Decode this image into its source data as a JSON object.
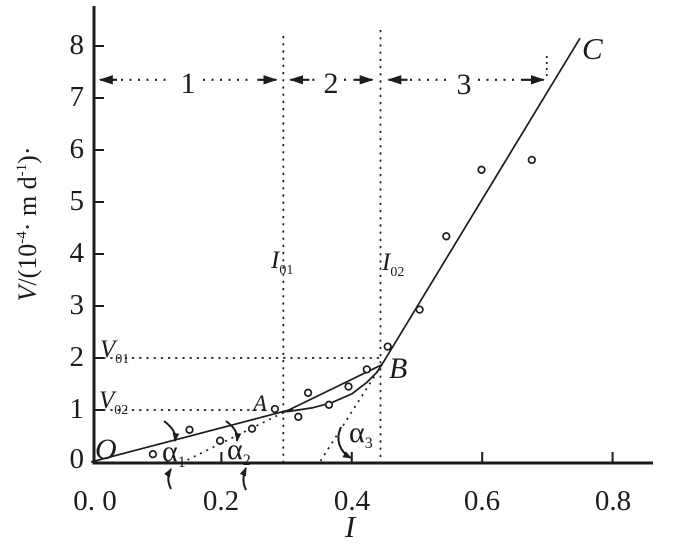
{
  "figure": {
    "background": "#ffffff",
    "ink_color": "#1c1c1c"
  },
  "chart_data": {
    "type": "scatter",
    "title": "",
    "xlabel": "I",
    "ylabel": "V/(10-4· m d-1)·",
    "ylabel_parts": {
      "v": "V",
      "open": "/(10",
      "sup1": "-4",
      "mid": "· m d",
      "sup2": "-1",
      "close": ")·"
    },
    "xlim": [
      0,
      0.88
    ],
    "ylim": [
      0,
      8.5
    ],
    "grid": false,
    "legend": null,
    "x_ticks": [
      {
        "value": 0,
        "label": "0. 0"
      },
      {
        "value": 0.2,
        "label": "0.2"
      },
      {
        "value": 0.4,
        "label": "0.4"
      },
      {
        "value": 0.6,
        "label": "0.6"
      },
      {
        "value": 0.8,
        "label": "0.8"
      }
    ],
    "y_ticks": [
      {
        "value": 0,
        "label": "0"
      },
      {
        "value": 1,
        "label": "1"
      },
      {
        "value": 2,
        "label": "2"
      },
      {
        "value": 3,
        "label": "3"
      },
      {
        "value": 4,
        "label": "4"
      },
      {
        "value": 5,
        "label": "5"
      },
      {
        "value": 6,
        "label": "6"
      },
      {
        "value": 7,
        "label": "7"
      },
      {
        "value": 8,
        "label": "8"
      }
    ],
    "points": [
      [
        0.095,
        0.15
      ],
      [
        0.151,
        0.62
      ],
      [
        0.198,
        0.41
      ],
      [
        0.247,
        0.64
      ],
      [
        0.282,
        1.02
      ],
      [
        0.318,
        0.87
      ],
      [
        0.333,
        1.33
      ],
      [
        0.365,
        1.1
      ],
      [
        0.395,
        1.45
      ],
      [
        0.423,
        1.78
      ],
      [
        0.455,
        2.22
      ],
      [
        0.504,
        2.93
      ],
      [
        0.545,
        4.34
      ],
      [
        0.599,
        5.62
      ],
      [
        0.676,
        5.81
      ]
    ],
    "fitted_lines": [
      {
        "name": "stage1-line",
        "style": "solid",
        "from": [
          0.0,
          0.0
        ],
        "to": [
          0.31,
          1.02
        ]
      },
      {
        "name": "stage2-line-dotted",
        "style": "dotted",
        "from": [
          0.148,
          0.04
        ],
        "to": [
          0.295,
          0.95
        ]
      },
      {
        "name": "stage2-line",
        "style": "solid",
        "from": [
          0.295,
          0.95
        ],
        "to": [
          0.446,
          1.87
        ]
      },
      {
        "name": "stage3-line-dotted",
        "style": "dotted",
        "from": [
          0.352,
          0.02
        ],
        "to": [
          0.446,
          1.87
        ]
      },
      {
        "name": "stage3-line",
        "style": "solid",
        "from": [
          0.446,
          1.87
        ],
        "to": [
          0.75,
          8.15
        ]
      }
    ],
    "curve": [
      [
        0.301,
        0.97
      ],
      [
        0.339,
        1.04
      ],
      [
        0.369,
        1.14
      ],
      [
        0.4,
        1.31
      ],
      [
        0.423,
        1.53
      ],
      [
        0.438,
        1.72
      ],
      [
        0.446,
        1.87
      ]
    ],
    "guides": {
      "I01_x": 0.295,
      "I02_x": 0.444,
      "V01_y": 2.0,
      "V02_y": 1.0,
      "V02_line_end_x": 0.268,
      "region_row_V": 7.35,
      "region3_end_x": 0.699
    },
    "key_points": {
      "O": [
        0.0,
        0.0
      ],
      "A": [
        0.282,
        1.02
      ],
      "B": [
        0.446,
        1.87
      ],
      "C": [
        0.75,
        8.15
      ]
    }
  },
  "annotations": {
    "origin": "O",
    "point_A": "A",
    "point_B": "B",
    "point_C": "C",
    "I01": {
      "base": "I",
      "sub": "01"
    },
    "I02": {
      "base": "I",
      "sub": "02"
    },
    "V01": {
      "base": "V",
      "sub": "01"
    },
    "V02": {
      "base": "V",
      "sub": "02"
    },
    "alpha1": {
      "base": "α",
      "sub": "1"
    },
    "alpha2": {
      "base": "α",
      "sub": "2"
    },
    "alpha3": {
      "base": "α",
      "sub": "3"
    },
    "region1": "1",
    "region2": "2",
    "region3": "3"
  }
}
